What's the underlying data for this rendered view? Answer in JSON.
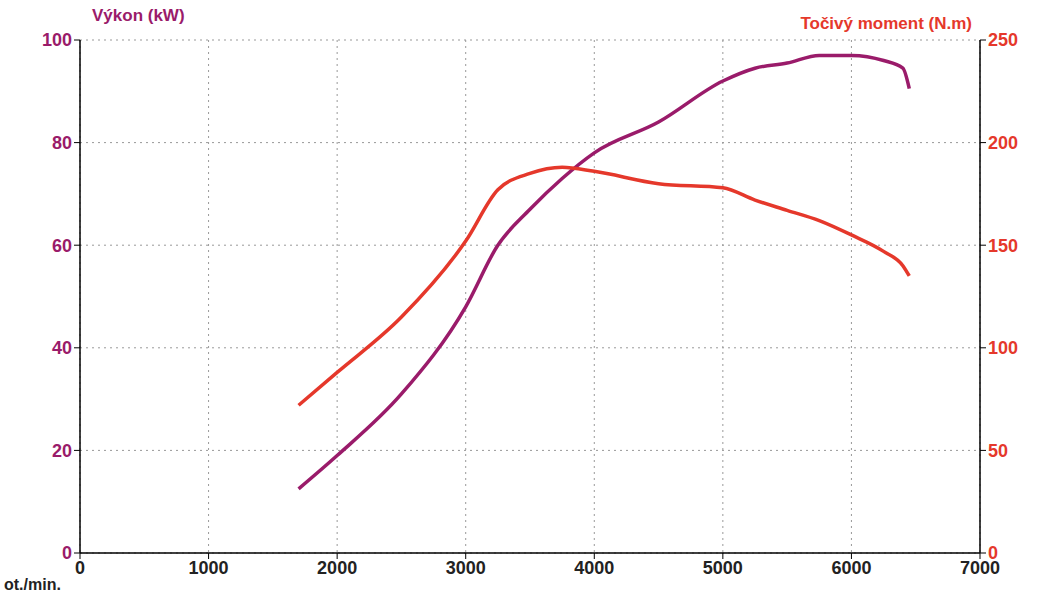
{
  "chart_data": {
    "type": "line",
    "xlabel": "ot./min.",
    "ylabel": "Výkon (kW)",
    "y2label": "Točivý moment (N.m)",
    "x": [
      1700,
      2000,
      2500,
      3000,
      3250,
      3500,
      3750,
      4000,
      4500,
      5000,
      5250,
      5500,
      5750,
      6000,
      6250,
      6400,
      6450
    ],
    "series": [
      {
        "name": "Výkon (kW)",
        "color": "#9a1b6a",
        "values": [
          12.5,
          19,
          31,
          48,
          60,
          67,
          73,
          78,
          84,
          92,
          94.5,
          95.5,
          97,
          97,
          96,
          94.5,
          90.5
        ]
      },
      {
        "name": "Točivý moment (N.m)",
        "color": "#e5382b",
        "axis": "y2",
        "values": [
          72,
          88,
          115,
          152,
          177,
          185,
          188,
          186,
          180,
          178,
          172,
          167,
          162,
          155,
          147,
          140,
          135
        ]
      }
    ],
    "xlim": [
      0,
      7000
    ],
    "xticks": [
      0,
      1000,
      2000,
      3000,
      4000,
      5000,
      6000,
      7000
    ],
    "ylim": [
      0,
      100
    ],
    "yticks": [
      0,
      20,
      40,
      60,
      80,
      100
    ],
    "y2lim": [
      0,
      250
    ],
    "y2ticks": [
      0,
      50,
      100,
      150,
      200,
      250
    ],
    "grid": true
  }
}
